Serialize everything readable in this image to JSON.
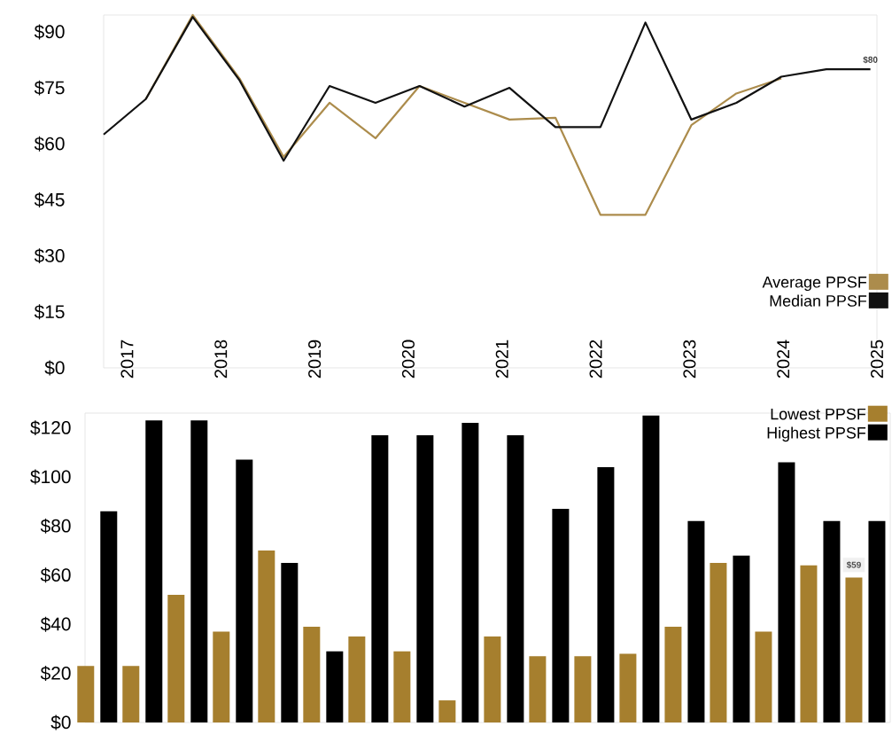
{
  "chart_data": [
    {
      "type": "line",
      "x": [
        2016.75,
        2017.2,
        2017.7,
        2018.2,
        2018.67,
        2019.16,
        2019.65,
        2020.12,
        2020.6,
        2021.08,
        2021.57,
        2022.05,
        2022.53,
        2023.02,
        2023.5,
        2023.98,
        2024.46,
        2024.93
      ],
      "series": [
        {
          "name": "Average PPSF",
          "color": "#ac8c4c",
          "values": [
            null,
            72,
            94.5,
            77.5,
            56.5,
            71,
            61.5,
            75.5,
            71,
            66.5,
            67,
            41,
            41,
            65,
            73.5,
            77.5,
            null,
            null
          ]
        },
        {
          "name": "Median PPSF",
          "color": "#111111",
          "values": [
            62.5,
            72,
            94,
            77,
            55.5,
            75.5,
            71,
            75.5,
            70,
            75,
            64.5,
            64.5,
            92.5,
            66.5,
            71,
            78,
            80,
            80
          ],
          "value_labels": [
            null,
            null,
            null,
            null,
            null,
            null,
            null,
            null,
            null,
            null,
            null,
            null,
            null,
            null,
            null,
            null,
            null,
            "$80"
          ]
        }
      ],
      "xlim": [
        2016.75,
        2025
      ],
      "xticks": [
        2017,
        2018,
        2019,
        2020,
        2021,
        2022,
        2023,
        2024,
        2025
      ],
      "ylim": [
        0,
        94.5
      ],
      "yticks": [
        {
          "value": 0,
          "label": "$0"
        },
        {
          "value": 15,
          "label": "$15"
        },
        {
          "value": 30,
          "label": "$30"
        },
        {
          "value": 45,
          "label": "$45"
        },
        {
          "value": 60,
          "label": "$60"
        },
        {
          "value": 75,
          "label": "$75"
        },
        {
          "value": 90,
          "label": "$90"
        }
      ],
      "legend": "bottom right",
      "marker": "none"
    },
    {
      "type": "bar",
      "categories": [
        null,
        null,
        null,
        null,
        null,
        null,
        null,
        null,
        null,
        null,
        null,
        null,
        null,
        null,
        null,
        null,
        null,
        null
      ],
      "series": [
        {
          "name": "Lowest PPSF",
          "color": "#a67f2e",
          "values": [
            23,
            23,
            52,
            37,
            70,
            39,
            35,
            29,
            9,
            35,
            27,
            27,
            28,
            39,
            65,
            37,
            64,
            59
          ],
          "value_labels": [
            null,
            null,
            null,
            null,
            null,
            null,
            null,
            null,
            null,
            null,
            null,
            null,
            null,
            null,
            null,
            null,
            null,
            "$59"
          ]
        },
        {
          "name": "Highest PPSF",
          "color": "#000000",
          "values": [
            86,
            123,
            123,
            107,
            65,
            29,
            117,
            117,
            122,
            117,
            87,
            104,
            125,
            82,
            68,
            106,
            82,
            82
          ]
        }
      ],
      "ylim": [
        0,
        126
      ],
      "yticks": [
        {
          "value": 0,
          "label": "$0"
        },
        {
          "value": 20,
          "label": "$20"
        },
        {
          "value": 40,
          "label": "$40"
        },
        {
          "value": 60,
          "label": "$60"
        },
        {
          "value": 80,
          "label": "$80"
        },
        {
          "value": 100,
          "label": "$100"
        },
        {
          "value": 120,
          "label": "$120"
        }
      ],
      "legend": "top right"
    }
  ]
}
